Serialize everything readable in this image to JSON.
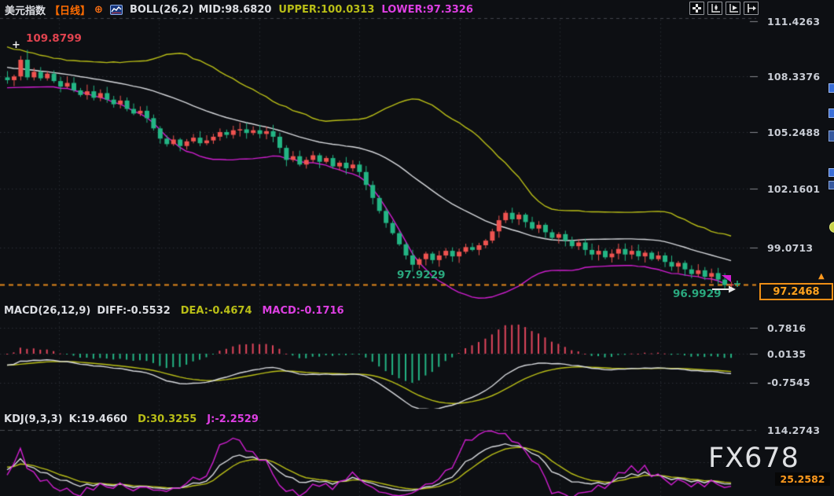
{
  "header": {
    "symbol": "美元指数",
    "period": "【日线】",
    "boll": "BOLL(26,2)",
    "mid": "MID:98.6820",
    "upper": "UPPER:100.0313",
    "lower": "LOWER:97.3326",
    "compare_icon": "circle-plus-icon",
    "legend_icon": "mini-chart-icon"
  },
  "toolbar": {
    "icons": [
      "move-crosshair-icon",
      "kline-tool-icon",
      "indicator-play-icon",
      "pan-right-icon"
    ]
  },
  "main_pane": {
    "axis_labels": [
      "111.4263",
      "108.3376",
      "105.2488",
      "102.1601",
      "99.0713"
    ],
    "price_box": "97.2468",
    "peak_label": "109.8799",
    "peak_marker": "+",
    "low_label_1": "97.9229",
    "low_label_2": "96.9929",
    "price_arrow": "▲"
  },
  "macd_pane": {
    "title": "MACD(26,12,9)",
    "diff": "DIFF:-0.5532",
    "dea": "DEA:-0.4674",
    "macd": "MACD:-0.1716",
    "axis_labels": [
      "0.7816",
      "0.0135",
      "-0.7545"
    ]
  },
  "kdj_pane": {
    "title": "KDJ(9,3,3)",
    "k": "K:19.4660",
    "d": "D:30.3255",
    "j": "J:-2.2529",
    "axis_top": "114.2743",
    "value_box": "25.2582"
  },
  "watermark": "FX678",
  "colors": {
    "background": "#0d0f13",
    "candle_up": "#ef5350",
    "candle_down": "#23b584",
    "boll_upper": "#b9be17",
    "boll_mid": "#d8dade",
    "boll_lower": "#d01ed0",
    "macd_diff_line": "#d8dade",
    "macd_dea_line": "#b9be17",
    "hist_positive": "#e0455c",
    "hist_negative": "#23b584",
    "kdj_k": "#d8dade",
    "kdj_d": "#b9be17",
    "kdj_j": "#d01ed0",
    "price_dash_line": "#e0861a",
    "accent_orange": "#ff9a1e",
    "grid": "#2e3138"
  },
  "chart_data": {
    "type": "candlestick",
    "title": "美元指数 日线 (US Dollar Index, Daily) with BOLL / MACD / KDJ",
    "panes": [
      "price+BOLL(26,2)",
      "MACD(26,12,9)",
      "KDJ(9,3,3)"
    ],
    "y_axis_ticks": [
      111.4263,
      108.3376,
      105.2488,
      102.1601,
      99.0713
    ],
    "last_price": 97.2468,
    "session_high_label": 109.8799,
    "marked_lows": [
      97.9229,
      96.9929
    ],
    "boll": {
      "period": 26,
      "k": 2,
      "mid": 98.682,
      "upper": 100.0313,
      "lower": 97.3326
    },
    "macd": {
      "params": [
        26,
        12,
        9
      ],
      "diff": -0.5532,
      "dea": -0.4674,
      "macd": -0.1716,
      "y_ticks": [
        0.7816,
        0.0135,
        -0.7545
      ]
    },
    "kdj": {
      "params": [
        9,
        3,
        3
      ],
      "k": 19.466,
      "d": 30.3255,
      "j": -2.2529,
      "y_ticks": [
        114.2743,
        25.2582
      ]
    },
    "grid": true,
    "legend_position": "top-left",
    "closes": [
      108.25,
      108.45,
      109.35,
      108.4,
      108.7,
      108.35,
      108.6,
      108.2,
      107.9,
      108.1,
      107.7,
      107.45,
      107.65,
      107.3,
      107.55,
      107.2,
      106.95,
      107.15,
      106.7,
      106.45,
      106.6,
      106.2,
      105.65,
      105.1,
      104.8,
      105.05,
      104.7,
      104.95,
      105.15,
      104.85,
      105.0,
      105.2,
      105.45,
      105.3,
      105.55,
      105.6,
      105.4,
      105.55,
      105.35,
      105.5,
      105.2,
      104.6,
      103.95,
      104.15,
      103.7,
      103.95,
      104.2,
      103.85,
      104.05,
      103.6,
      103.8,
      103.5,
      103.7,
      103.3,
      102.6,
      101.9,
      101.2,
      100.55,
      100.0,
      99.4,
      98.8,
      98.3,
      98.6,
      98.9,
      98.55,
      98.8,
      99.05,
      98.75,
      99.0,
      99.25,
      99.1,
      99.35,
      99.6,
      100.1,
      100.7,
      101.1,
      100.75,
      101.0,
      100.6,
      100.25,
      100.45,
      100.05,
      99.75,
      99.95,
      99.6,
      99.3,
      99.5,
      99.1,
      98.85,
      99.05,
      98.7,
      98.9,
      99.15,
      98.85,
      99.05,
      98.75,
      98.95,
      98.6,
      98.8,
      98.45,
      98.2,
      98.4,
      98.05,
      97.8,
      98.0,
      97.65,
      97.85,
      97.5,
      97.2,
      97.2468
    ]
  }
}
